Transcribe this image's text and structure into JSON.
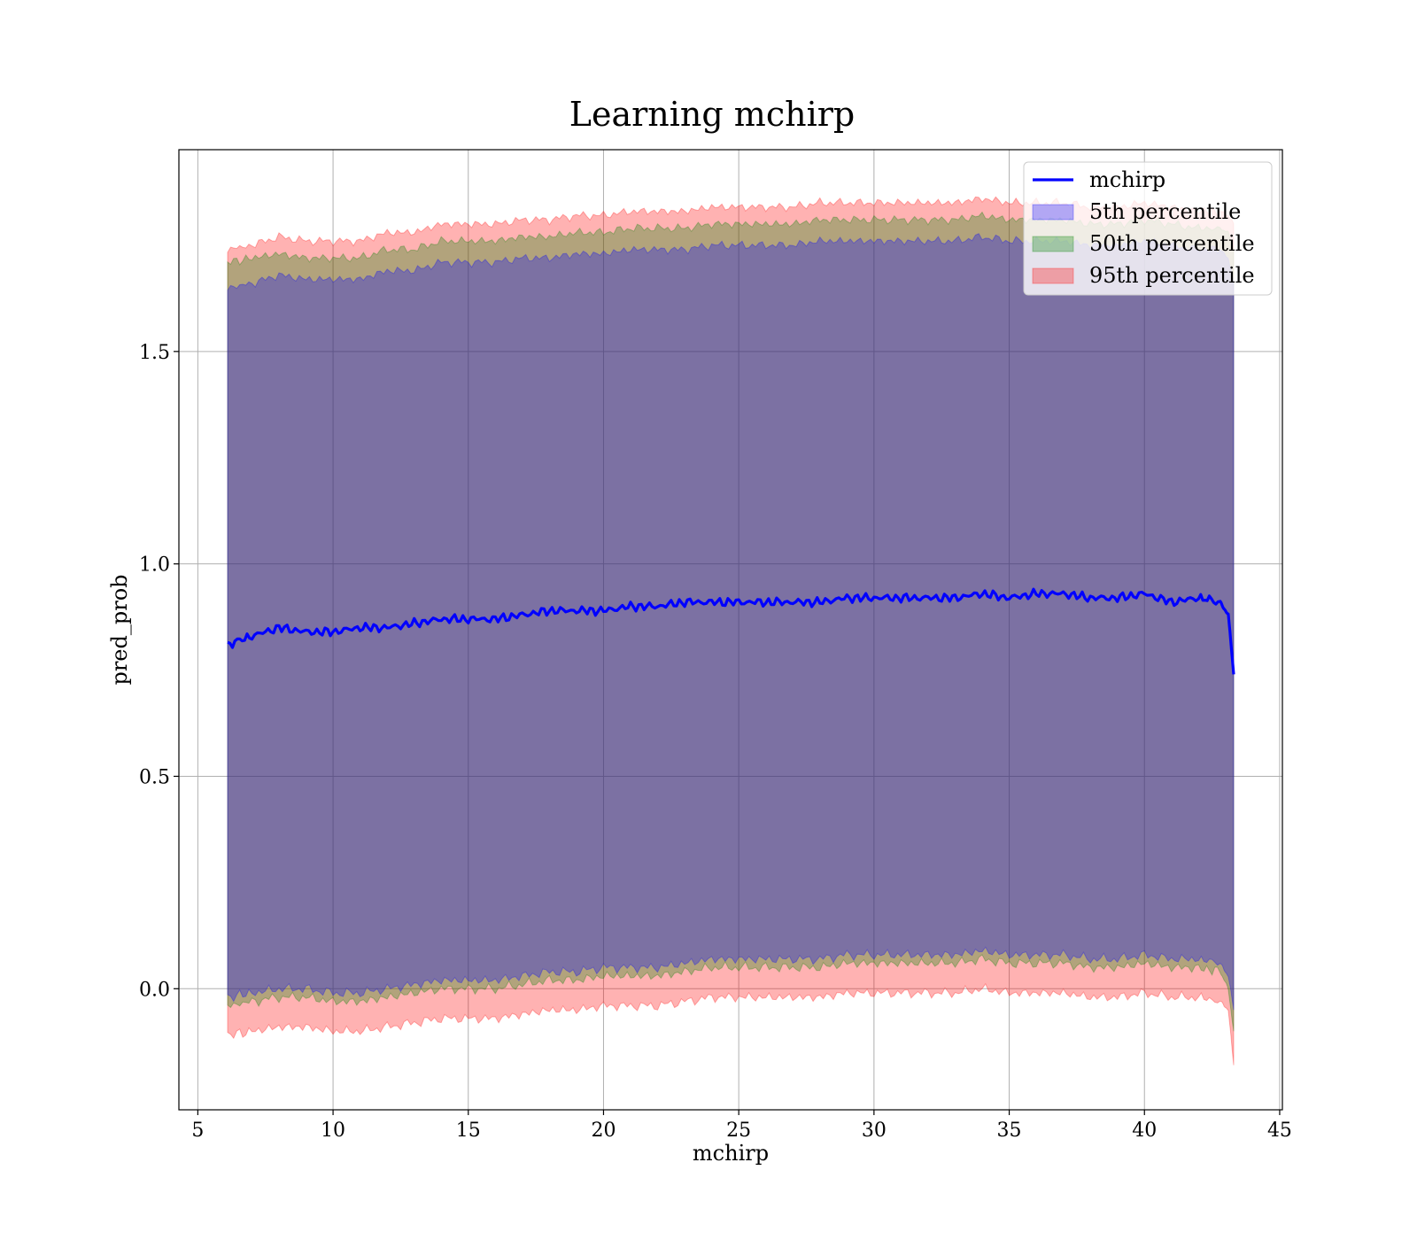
{
  "chart_data": {
    "type": "line",
    "title": "Learning mchirp",
    "xlabel": "mchirp",
    "ylabel": "pred_prob",
    "xlim": [
      4.3,
      45.1
    ],
    "ylim": [
      -0.285,
      1.975
    ],
    "xticks": [
      5,
      10,
      15,
      20,
      25,
      30,
      35,
      40,
      45
    ],
    "xtick_labels": [
      "5",
      "10",
      "15",
      "20",
      "25",
      "30",
      "35",
      "40",
      "45"
    ],
    "yticks": [
      0.0,
      0.5,
      1.0,
      1.5
    ],
    "ytick_labels": [
      "0.0",
      "0.5",
      "1.0",
      "1.5"
    ],
    "grid": true,
    "legend_position": "top-right",
    "colors": {
      "line": "#0000ff",
      "band_5": "#0000ff",
      "band_50": "#008000",
      "band_95": "#ff0000",
      "grid": "#b0b0b0"
    },
    "line_series": {
      "name": "mchirp",
      "x": [
        6.1,
        7,
        8,
        9,
        10,
        11,
        12,
        13,
        14,
        15,
        16,
        17,
        18,
        19,
        20,
        21,
        22,
        23,
        24,
        25,
        26,
        27,
        28,
        29,
        30,
        31,
        32,
        33,
        34,
        35,
        36,
        37,
        38,
        39,
        40,
        41,
        42,
        42.8,
        43.1,
        43.3
      ],
      "y": [
        0.81,
        0.83,
        0.85,
        0.84,
        0.84,
        0.85,
        0.85,
        0.86,
        0.87,
        0.87,
        0.87,
        0.88,
        0.89,
        0.89,
        0.89,
        0.9,
        0.9,
        0.91,
        0.91,
        0.91,
        0.91,
        0.91,
        0.91,
        0.92,
        0.92,
        0.92,
        0.92,
        0.92,
        0.93,
        0.92,
        0.93,
        0.93,
        0.92,
        0.92,
        0.93,
        0.91,
        0.92,
        0.91,
        0.88,
        0.74
      ]
    },
    "bands": [
      {
        "name": "95th percentile",
        "color": "#ff0000",
        "x": [
          6.1,
          7,
          8,
          9,
          10,
          11,
          12,
          13,
          14,
          15,
          16,
          17,
          18,
          19,
          20,
          21,
          22,
          23,
          24,
          25,
          26,
          27,
          28,
          29,
          30,
          31,
          32,
          33,
          34,
          35,
          36,
          37,
          38,
          39,
          40,
          41,
          42,
          42.8,
          43.1,
          43.3
        ],
        "lower": [
          -0.11,
          -0.1,
          -0.09,
          -0.09,
          -0.1,
          -0.1,
          -0.09,
          -0.08,
          -0.07,
          -0.07,
          -0.07,
          -0.06,
          -0.05,
          -0.05,
          -0.04,
          -0.04,
          -0.04,
          -0.03,
          -0.02,
          -0.02,
          -0.02,
          -0.02,
          -0.02,
          -0.01,
          -0.01,
          -0.01,
          -0.01,
          -0.01,
          0.0,
          -0.01,
          -0.01,
          -0.01,
          -0.02,
          -0.02,
          -0.01,
          -0.02,
          -0.02,
          -0.03,
          -0.05,
          -0.18
        ],
        "upper": [
          1.74,
          1.75,
          1.77,
          1.76,
          1.76,
          1.76,
          1.78,
          1.78,
          1.8,
          1.8,
          1.8,
          1.81,
          1.81,
          1.82,
          1.82,
          1.83,
          1.83,
          1.83,
          1.84,
          1.84,
          1.84,
          1.84,
          1.85,
          1.85,
          1.85,
          1.85,
          1.85,
          1.85,
          1.86,
          1.85,
          1.85,
          1.85,
          1.84,
          1.84,
          1.85,
          1.84,
          1.83,
          1.83,
          1.82,
          1.8
        ]
      },
      {
        "name": "50th percentile",
        "color": "#008000",
        "x": [
          6.1,
          7,
          8,
          9,
          10,
          11,
          12,
          13,
          14,
          15,
          16,
          17,
          18,
          19,
          20,
          21,
          22,
          23,
          24,
          25,
          26,
          27,
          28,
          29,
          30,
          31,
          32,
          33,
          34,
          35,
          36,
          37,
          38,
          39,
          40,
          41,
          42,
          42.8,
          43.1,
          43.3
        ],
        "lower": [
          -0.04,
          -0.03,
          -0.02,
          -0.02,
          -0.03,
          -0.03,
          -0.02,
          -0.01,
          0.0,
          0.0,
          0.0,
          0.01,
          0.02,
          0.02,
          0.03,
          0.03,
          0.03,
          0.04,
          0.05,
          0.05,
          0.05,
          0.05,
          0.05,
          0.06,
          0.06,
          0.06,
          0.06,
          0.06,
          0.07,
          0.06,
          0.06,
          0.06,
          0.05,
          0.05,
          0.06,
          0.05,
          0.05,
          0.04,
          0.0,
          -0.1
        ],
        "upper": [
          1.71,
          1.72,
          1.73,
          1.72,
          1.72,
          1.72,
          1.74,
          1.74,
          1.76,
          1.76,
          1.76,
          1.77,
          1.77,
          1.78,
          1.78,
          1.79,
          1.79,
          1.79,
          1.8,
          1.8,
          1.8,
          1.8,
          1.81,
          1.81,
          1.81,
          1.81,
          1.81,
          1.81,
          1.82,
          1.81,
          1.81,
          1.81,
          1.8,
          1.8,
          1.81,
          1.8,
          1.79,
          1.79,
          1.78,
          1.74
        ]
      },
      {
        "name": "5th percentile",
        "color": "#0000ff",
        "x": [
          6.1,
          7,
          8,
          9,
          10,
          11,
          12,
          13,
          14,
          15,
          16,
          17,
          18,
          19,
          20,
          21,
          22,
          23,
          24,
          25,
          26,
          27,
          28,
          29,
          30,
          31,
          32,
          33,
          34,
          35,
          36,
          37,
          38,
          39,
          40,
          41,
          42,
          42.8,
          43.1,
          43.3
        ],
        "lower": [
          -0.02,
          -0.01,
          0.0,
          0.0,
          -0.01,
          -0.01,
          0.0,
          0.01,
          0.02,
          0.02,
          0.02,
          0.03,
          0.04,
          0.04,
          0.05,
          0.05,
          0.05,
          0.06,
          0.07,
          0.07,
          0.07,
          0.07,
          0.07,
          0.08,
          0.08,
          0.08,
          0.08,
          0.08,
          0.09,
          0.08,
          0.08,
          0.08,
          0.07,
          0.07,
          0.08,
          0.07,
          0.07,
          0.06,
          0.03,
          -0.05
        ],
        "upper": [
          1.65,
          1.66,
          1.68,
          1.67,
          1.67,
          1.67,
          1.69,
          1.69,
          1.71,
          1.71,
          1.71,
          1.72,
          1.72,
          1.73,
          1.73,
          1.74,
          1.74,
          1.74,
          1.75,
          1.75,
          1.75,
          1.75,
          1.76,
          1.76,
          1.76,
          1.76,
          1.76,
          1.76,
          1.77,
          1.76,
          1.76,
          1.76,
          1.75,
          1.75,
          1.76,
          1.75,
          1.74,
          1.74,
          1.72,
          1.66
        ]
      }
    ],
    "legend": [
      {
        "label": "mchirp",
        "kind": "line",
        "color": "#0000ff"
      },
      {
        "label": "5th percentile",
        "kind": "patch",
        "color": "#0000ff"
      },
      {
        "label": "50th percentile",
        "kind": "patch",
        "color": "#008000"
      },
      {
        "label": "95th percentile",
        "kind": "patch",
        "color": "#ff0000"
      }
    ]
  }
}
